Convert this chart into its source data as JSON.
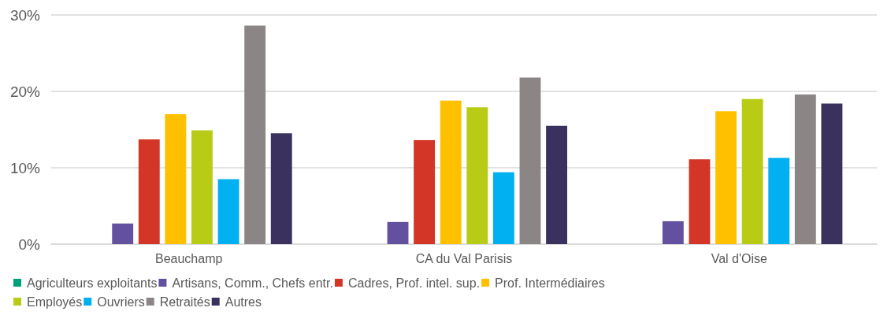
{
  "chart_data": {
    "type": "bar",
    "categories": [
      "Beauchamp",
      "CA du Val Parisis",
      "Val d'Oise"
    ],
    "series": [
      {
        "name": "Agriculteurs exploitants",
        "color": "#00a07a",
        "values": [
          0,
          0,
          0
        ]
      },
      {
        "name": "Artisans, Comm., Chefs entr.",
        "color": "#6351a0",
        "values": [
          2.7,
          2.9,
          3.0
        ]
      },
      {
        "name": "Cadres, Prof. intel. sup.",
        "color": "#d33526",
        "values": [
          13.7,
          13.6,
          11.1
        ]
      },
      {
        "name": "Prof. Intermédiaires",
        "color": "#ffc000",
        "values": [
          17.0,
          18.8,
          17.4
        ]
      },
      {
        "name": "Employés",
        "color": "#b8cc16",
        "values": [
          14.9,
          17.9,
          19.0
        ]
      },
      {
        "name": "Ouvriers",
        "color": "#00b0f0",
        "values": [
          8.5,
          9.4,
          11.3
        ]
      },
      {
        "name": "Retraités",
        "color": "#8b8685",
        "values": [
          28.6,
          21.8,
          19.6
        ]
      },
      {
        "name": "Autres",
        "color": "#3a315e",
        "values": [
          14.5,
          15.5,
          18.4
        ]
      }
    ],
    "ylim": [
      0,
      30
    ],
    "yticks": [
      {
        "value": 0,
        "label": "0%"
      },
      {
        "value": 10,
        "label": "10%"
      },
      {
        "value": 20,
        "label": "20%"
      },
      {
        "value": 30,
        "label": "30%"
      }
    ],
    "grid": "y",
    "legend": "bottom"
  }
}
